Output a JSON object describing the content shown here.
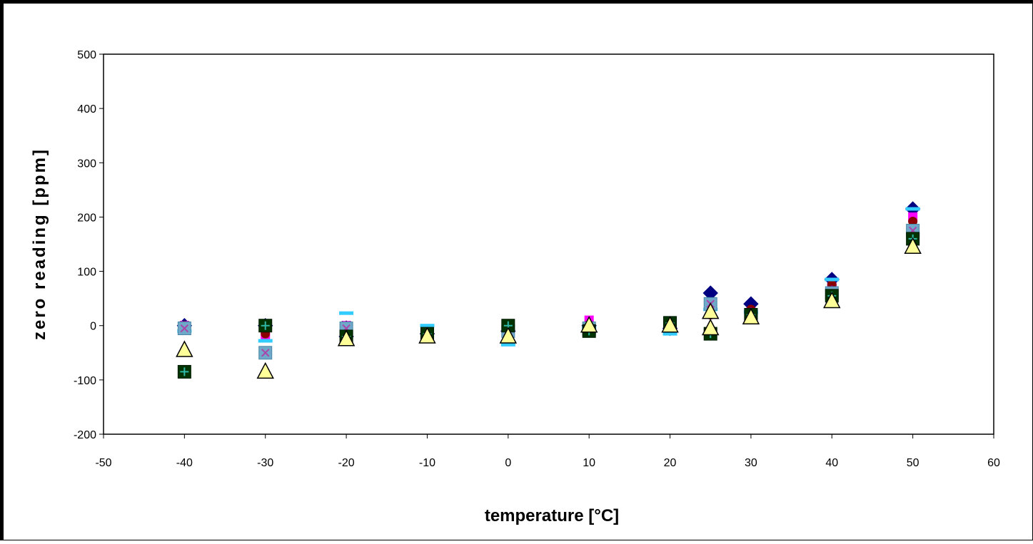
{
  "chart_data": {
    "type": "scatter",
    "title": "",
    "xlabel": "temperature [°C]",
    "ylabel": "zero reading [ppm]",
    "xlim": [
      -50,
      60
    ],
    "ylim": [
      -200,
      500
    ],
    "x_ticks": [
      -50,
      -40,
      -30,
      -20,
      -10,
      0,
      10,
      20,
      30,
      40,
      50,
      60
    ],
    "y_ticks": [
      -200,
      -100,
      0,
      100,
      200,
      300,
      400,
      500
    ],
    "grid": false,
    "legend": "none",
    "series": [
      {
        "marker": "diamond",
        "color": "#000080",
        "points": [
          [
            -40,
            0
          ],
          [
            -30,
            0
          ],
          [
            -20,
            -20
          ],
          [
            -10,
            -15
          ],
          [
            0,
            -10
          ],
          [
            10,
            0
          ],
          [
            20,
            -5
          ],
          [
            25,
            60
          ],
          [
            30,
            40
          ],
          [
            40,
            85
          ],
          [
            50,
            215
          ]
        ]
      },
      {
        "marker": "square",
        "color": "#ff00ff",
        "points": [
          [
            -40,
            0
          ],
          [
            -30,
            -20
          ],
          [
            -20,
            0
          ],
          [
            -10,
            -10
          ],
          [
            0,
            0
          ],
          [
            10,
            10
          ],
          [
            20,
            0
          ],
          [
            25,
            30
          ],
          [
            30,
            25
          ],
          [
            40,
            70
          ],
          [
            50,
            200
          ]
        ]
      },
      {
        "marker": "circle",
        "color": "#8b0000",
        "points": [
          [
            -40,
            0
          ],
          [
            -30,
            -15
          ],
          [
            -20,
            -10
          ],
          [
            -10,
            -15
          ],
          [
            0,
            -5
          ],
          [
            10,
            0
          ],
          [
            20,
            0
          ],
          [
            25,
            20
          ],
          [
            30,
            30
          ],
          [
            40,
            75
          ],
          [
            50,
            192
          ]
        ]
      },
      {
        "marker": "x",
        "color": "#800080",
        "points": [
          [
            -40,
            0
          ],
          [
            -30,
            -50
          ],
          [
            -20,
            0
          ],
          [
            -10,
            -15
          ],
          [
            0,
            -15
          ],
          [
            10,
            0
          ],
          [
            20,
            -5
          ],
          [
            25,
            35
          ],
          [
            30,
            25
          ],
          [
            40,
            65
          ],
          [
            50,
            170
          ]
        ]
      },
      {
        "marker": "dash",
        "color": "#33ccff",
        "points": [
          [
            -40,
            -10
          ],
          [
            -30,
            -28
          ],
          [
            -20,
            23
          ],
          [
            -10,
            0
          ],
          [
            0,
            -35
          ],
          [
            10,
            -5
          ],
          [
            20,
            -15
          ],
          [
            25,
            30
          ],
          [
            30,
            25
          ],
          [
            40,
            85
          ],
          [
            50,
            215
          ]
        ]
      },
      {
        "marker": "square-tealcross",
        "color": "#00cccc",
        "points": [
          [
            -40,
            -5
          ],
          [
            -30,
            -50
          ],
          [
            -20,
            -5
          ],
          [
            -10,
            -15
          ],
          [
            0,
            -10
          ],
          [
            10,
            -5
          ],
          [
            20,
            5
          ],
          [
            25,
            40
          ],
          [
            30,
            20
          ],
          [
            40,
            60
          ],
          [
            50,
            175
          ]
        ]
      },
      {
        "marker": "square-plus",
        "color": "#004000",
        "points": [
          [
            -40,
            -85
          ],
          [
            -30,
            0
          ],
          [
            -20,
            -20
          ],
          [
            -10,
            -15
          ],
          [
            0,
            0
          ],
          [
            10,
            -10
          ],
          [
            20,
            5
          ],
          [
            25,
            -15
          ],
          [
            30,
            20
          ],
          [
            40,
            55
          ],
          [
            50,
            160
          ]
        ]
      },
      {
        "marker": "triangle",
        "color": "#ffff99",
        "points": [
          [
            -40,
            -45
          ],
          [
            -30,
            -85
          ],
          [
            -20,
            -25
          ],
          [
            -10,
            -20
          ],
          [
            0,
            -20
          ],
          [
            10,
            0
          ],
          [
            20,
            0
          ],
          [
            25,
            25
          ],
          [
            25,
            -5
          ],
          [
            30,
            15
          ],
          [
            40,
            45
          ],
          [
            50,
            145
          ]
        ]
      }
    ]
  }
}
